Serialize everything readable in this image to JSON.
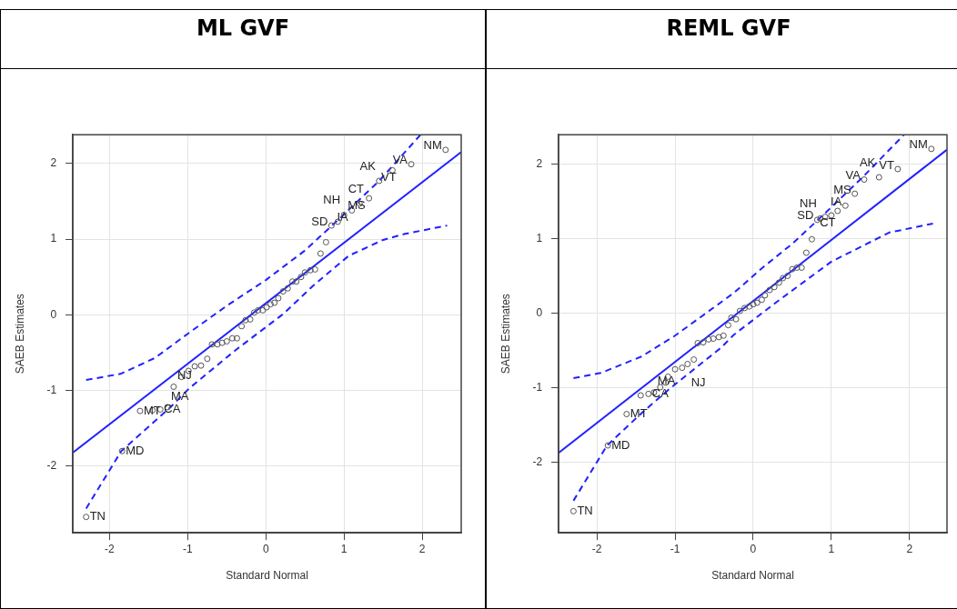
{
  "chart_data": [
    {
      "type": "scatter",
      "title": "ML GVF",
      "xlabel": "Standard Normal",
      "ylabel": "SAEB Estimates",
      "xlim": [
        -2.47,
        2.5
      ],
      "ylim": [
        -2.88,
        2.38
      ],
      "xticks": [
        -2,
        -1,
        0,
        1,
        2
      ],
      "yticks": [
        -2,
        -1,
        0,
        1,
        2
      ],
      "grid": true,
      "legend": false,
      "series": [
        {
          "type": "scatter",
          "color": "#555555",
          "marker": "circle",
          "x": [
            -2.3,
            -1.84,
            -1.61,
            -1.45,
            -1.35,
            -1.26,
            -1.18,
            -1.08,
            -0.99,
            -0.91,
            -0.83,
            -0.75,
            -0.69,
            -0.62,
            -0.56,
            -0.5,
            -0.43,
            -0.37,
            -0.31,
            -0.26,
            -0.2,
            -0.15,
            -0.1,
            -0.04,
            0.01,
            0.06,
            0.11,
            0.16,
            0.22,
            0.28,
            0.34,
            0.39,
            0.45,
            0.5,
            0.57,
            0.63,
            0.7,
            0.77,
            0.84,
            0.92,
            1.0,
            1.1,
            1.2,
            1.32,
            1.45,
            1.62,
            1.86,
            2.3
          ],
          "values": [
            -2.67,
            -1.8,
            -1.27,
            -1.26,
            -1.25,
            -1.22,
            -0.95,
            -0.82,
            -0.74,
            -0.68,
            -0.67,
            -0.58,
            -0.39,
            -0.39,
            -0.37,
            -0.35,
            -0.31,
            -0.31,
            -0.15,
            -0.07,
            -0.06,
            0.03,
            0.06,
            0.06,
            0.1,
            0.14,
            0.16,
            0.22,
            0.31,
            0.35,
            0.44,
            0.44,
            0.5,
            0.56,
            0.59,
            0.6,
            0.81,
            0.96,
            1.18,
            1.23,
            1.32,
            1.38,
            1.47,
            1.54,
            1.77,
            1.91,
            1.99,
            2.18
          ]
        },
        {
          "type": "line",
          "color": "#2222ff",
          "line_style": "solid",
          "x": [
            -2.47,
            2.5
          ],
          "values": [
            -1.82,
            2.15
          ]
        },
        {
          "type": "line",
          "color": "#2222ff",
          "line_style": "dashed",
          "x": [
            -2.3,
            -1.86,
            -1.42,
            -1.0,
            -0.5,
            0,
            0.5,
            0.91,
            1.45,
            1.98
          ],
          "values": [
            -0.86,
            -0.78,
            -0.57,
            -0.25,
            0.12,
            0.46,
            0.85,
            1.24,
            1.77,
            2.38
          ]
        },
        {
          "type": "line",
          "color": "#2222ff",
          "line_style": "dashed",
          "x": [
            -2.3,
            -1.85,
            -1.22,
            -0.98,
            -0.38,
            0.22,
            0.6,
            1.06,
            1.5,
            1.78,
            2.32
          ],
          "values": [
            -2.56,
            -1.8,
            -1.22,
            -0.97,
            -0.46,
            0.01,
            0.38,
            0.78,
            0.99,
            1.07,
            1.18
          ]
        }
      ],
      "annotations": [
        {
          "text": "TN",
          "x": -2.3,
          "y": -2.67
        },
        {
          "text": "MD",
          "x": -1.84,
          "y": -1.8
        },
        {
          "text": "MT",
          "x": -1.61,
          "y": -1.27
        },
        {
          "text": "CA",
          "x": -1.35,
          "y": -1.25
        },
        {
          "text": "MA",
          "x": -1.26,
          "y": -1.22
        },
        {
          "text": "NJ",
          "x": -1.18,
          "y": -0.95
        },
        {
          "text": "SD",
          "x": 0.84,
          "y": 1.18
        },
        {
          "text": "NH",
          "x": 1.0,
          "y": 1.32
        },
        {
          "text": "IA",
          "x": 1.1,
          "y": 1.38
        },
        {
          "text": "CT",
          "x": 1.2,
          "y": 1.47
        },
        {
          "text": "MS",
          "x": 1.32,
          "y": 1.54
        },
        {
          "text": "AK",
          "x": 1.45,
          "y": 1.77
        },
        {
          "text": "VT",
          "x": 1.62,
          "y": 1.91
        },
        {
          "text": "VA",
          "x": 1.86,
          "y": 1.99
        },
        {
          "text": "NM",
          "x": 2.3,
          "y": 2.18
        }
      ]
    },
    {
      "type": "scatter",
      "title": "REML GVF",
      "xlabel": "Standard Normal",
      "ylabel": "SAEB Estimates",
      "xlim": [
        -2.49,
        2.48
      ],
      "ylim": [
        -2.94,
        2.39
      ],
      "xticks": [
        -2,
        -1,
        0,
        1,
        2
      ],
      "yticks": [
        -2,
        -1,
        0,
        1,
        2
      ],
      "grid": true,
      "legend": false,
      "series": [
        {
          "type": "scatter",
          "color": "#555555",
          "marker": "circle",
          "x": [
            -2.3,
            -1.86,
            -1.62,
            -1.44,
            -1.34,
            -1.27,
            -1.19,
            -1.12,
            -1.09,
            -1.0,
            -0.91,
            -0.84,
            -0.76,
            -0.71,
            -0.64,
            -0.57,
            -0.51,
            -0.44,
            -0.38,
            -0.32,
            -0.28,
            -0.22,
            -0.17,
            -0.11,
            -0.05,
            0.0,
            0.05,
            0.11,
            0.15,
            0.21,
            0.27,
            0.33,
            0.38,
            0.44,
            0.5,
            0.56,
            0.62,
            0.68,
            0.75,
            0.82,
            0.86,
            0.92,
            1.0,
            1.08,
            1.18,
            1.3,
            1.42,
            1.61,
            1.85,
            2.28
          ],
          "values": [
            -2.65,
            -1.77,
            -1.35,
            -1.1,
            -1.08,
            -1.06,
            -0.99,
            -0.93,
            -0.85,
            -0.75,
            -0.73,
            -0.68,
            -0.62,
            -0.4,
            -0.39,
            -0.35,
            -0.34,
            -0.32,
            -0.3,
            -0.16,
            -0.06,
            -0.08,
            0.03,
            0.07,
            0.09,
            0.12,
            0.14,
            0.18,
            0.24,
            0.31,
            0.35,
            0.41,
            0.47,
            0.5,
            0.59,
            0.61,
            0.61,
            0.81,
            0.99,
            1.25,
            1.27,
            1.29,
            1.31,
            1.37,
            1.44,
            1.6,
            1.79,
            1.82,
            1.93,
            2.2
          ]
        },
        {
          "type": "line",
          "color": "#2222ff",
          "line_style": "solid",
          "x": [
            -2.49,
            2.48
          ],
          "values": [
            -1.87,
            2.19
          ]
        },
        {
          "type": "line",
          "color": "#2222ff",
          "line_style": "dashed",
          "x": [
            -2.3,
            -1.95,
            -1.43,
            -1.0,
            -0.5,
            -0.25,
            0.12,
            0.5,
            0.83,
            1.4,
            1.93
          ],
          "values": [
            -0.87,
            -0.8,
            -0.58,
            -0.3,
            0.08,
            0.27,
            0.61,
            0.93,
            1.25,
            1.82,
            2.39
          ]
        },
        {
          "type": "line",
          "color": "#2222ff",
          "line_style": "dashed",
          "x": [
            -2.3,
            -1.87,
            -1.41,
            -1.08,
            -0.41,
            -0.25,
            0.3,
            1.0,
            1.74,
            2.3
          ],
          "values": [
            -2.51,
            -1.77,
            -1.32,
            -1.02,
            -0.46,
            -0.29,
            0.15,
            0.69,
            1.08,
            1.2
          ]
        }
      ],
      "annotations": [
        {
          "text": "TN",
          "x": -2.3,
          "y": -2.65
        },
        {
          "text": "MD",
          "x": -1.86,
          "y": -1.77
        },
        {
          "text": "MT",
          "x": -1.62,
          "y": -1.35
        },
        {
          "text": "CA",
          "x": -1.34,
          "y": -1.08
        },
        {
          "text": "MA",
          "x": -1.27,
          "y": -1.06
        },
        {
          "text": "NJ",
          "x": -1.12,
          "y": -0.93
        },
        {
          "text": "SD",
          "x": 0.82,
          "y": 1.25
        },
        {
          "text": "NH",
          "x": 0.86,
          "y": 1.27
        },
        {
          "text": "CT",
          "x": 1.0,
          "y": 1.31
        },
        {
          "text": "IA",
          "x": 1.18,
          "y": 1.44
        },
        {
          "text": "MS",
          "x": 1.3,
          "y": 1.6
        },
        {
          "text": "VA",
          "x": 1.42,
          "y": 1.79
        },
        {
          "text": "AK",
          "x": 1.61,
          "y": 1.82
        },
        {
          "text": "VT",
          "x": 1.85,
          "y": 1.93
        },
        {
          "text": "NM",
          "x": 2.28,
          "y": 2.2
        }
      ]
    }
  ]
}
